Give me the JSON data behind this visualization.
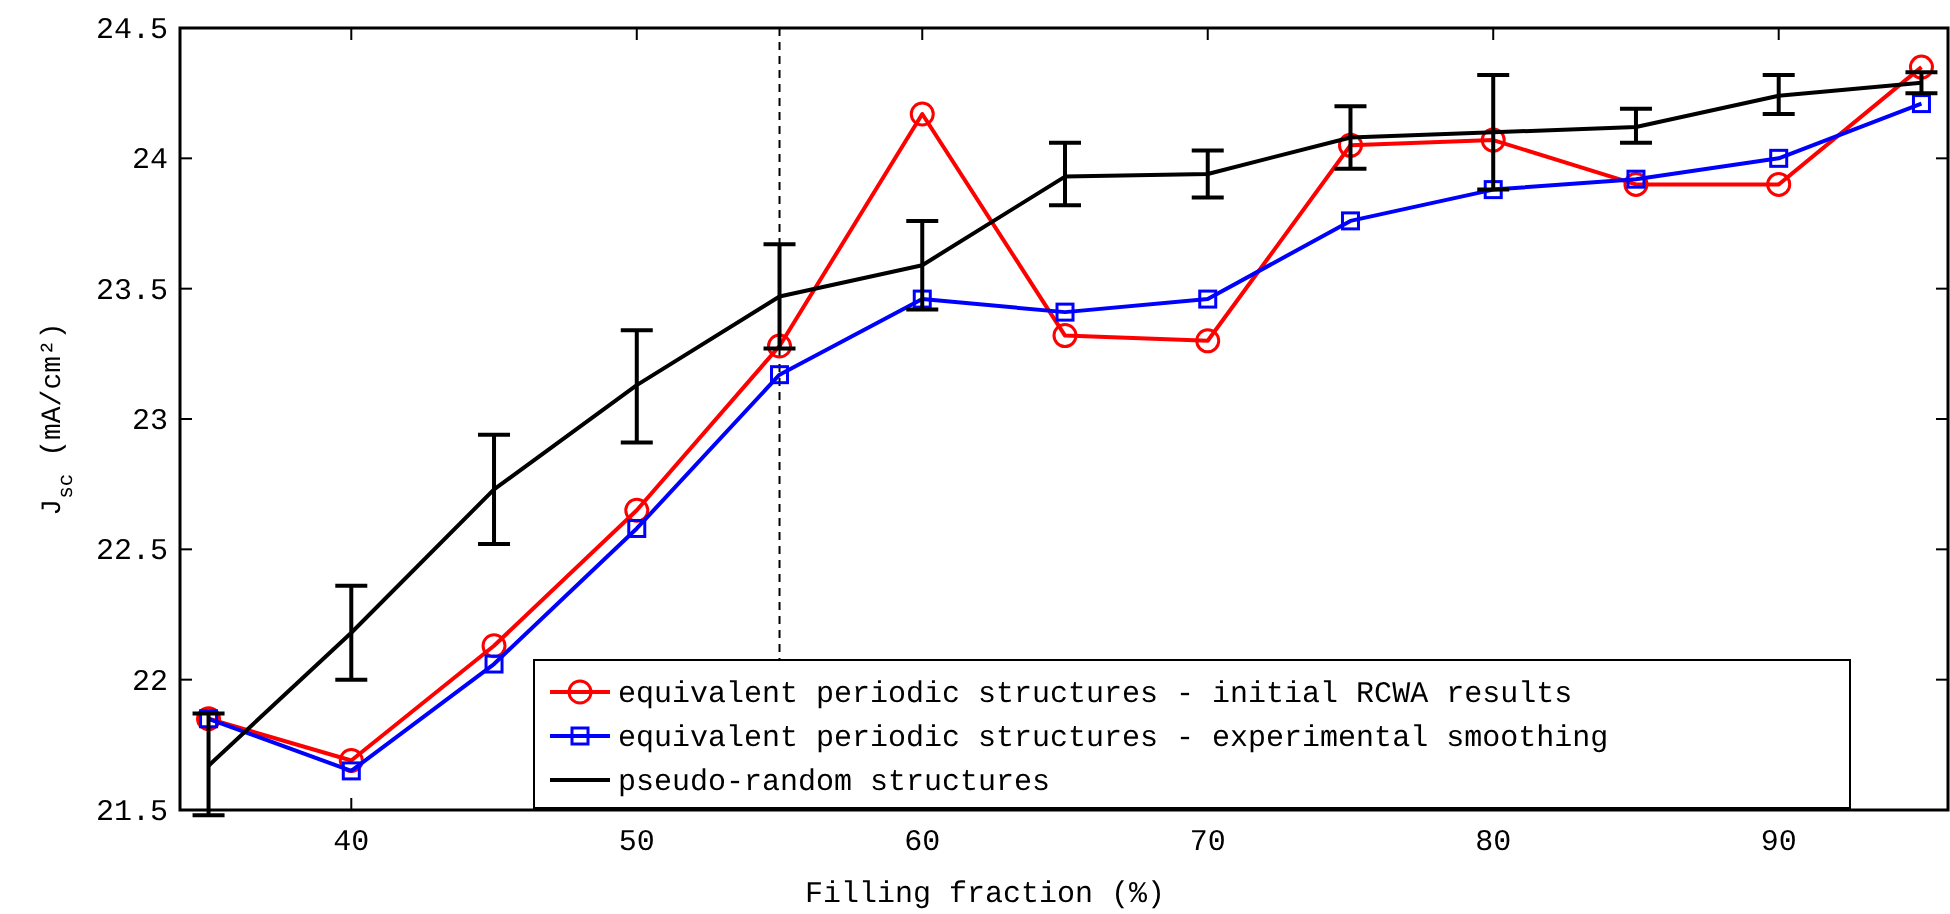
{
  "chart_data": {
    "type": "line",
    "xlabel": "Filling fraction (%)",
    "ylabel": "J$_{sc}$ (mA/cm²)",
    "x": [
      35,
      40,
      45,
      50,
      55,
      60,
      65,
      70,
      75,
      80,
      85,
      90,
      95
    ],
    "xlim": [
      34,
      96
    ],
    "xticks": [
      40,
      50,
      60,
      70,
      80,
      90
    ],
    "ylim": [
      21.5,
      24.5
    ],
    "yticks": [
      21.5,
      22,
      22.5,
      23,
      23.5,
      24,
      24.5
    ],
    "grid": false,
    "legend": "bottom right",
    "line_style": "solid",
    "ref_lines": [
      {
        "axis": "x",
        "value": 55,
        "color": "#000000",
        "line_style": "dashed"
      }
    ],
    "series": [
      {
        "name": "equivalent periodic structures - initial RCWA results",
        "color": "#ff0000",
        "marker": "circle",
        "values": [
          21.85,
          21.69,
          22.13,
          22.65,
          23.28,
          24.17,
          23.32,
          23.3,
          24.05,
          24.07,
          23.9,
          23.9,
          24.35
        ]
      },
      {
        "name": "equivalent periodic structures - experimental smoothing",
        "color": "#0000ff",
        "marker": "square",
        "values": [
          21.85,
          21.65,
          22.06,
          22.58,
          23.17,
          23.46,
          23.41,
          23.46,
          23.76,
          23.88,
          23.92,
          24.0,
          24.21
        ]
      },
      {
        "name": "pseudo-random structures",
        "color": "#000000",
        "marker": "none",
        "values": [
          21.67,
          22.18,
          22.73,
          23.13,
          23.47,
          23.59,
          23.93,
          23.94,
          24.08,
          24.1,
          24.12,
          24.24,
          24.29
        ],
        "errors": [
          [
            21.48,
            21.87
          ],
          [
            22.0,
            22.36
          ],
          [
            22.52,
            22.94
          ],
          [
            22.91,
            23.34
          ],
          [
            23.27,
            23.67
          ],
          [
            23.42,
            23.76
          ],
          [
            23.82,
            24.06
          ],
          [
            23.85,
            24.03
          ],
          [
            23.96,
            24.2
          ],
          [
            23.88,
            24.32
          ],
          [
            24.06,
            24.19
          ],
          [
            24.17,
            24.32
          ],
          [
            24.25,
            24.33
          ]
        ]
      }
    ]
  }
}
